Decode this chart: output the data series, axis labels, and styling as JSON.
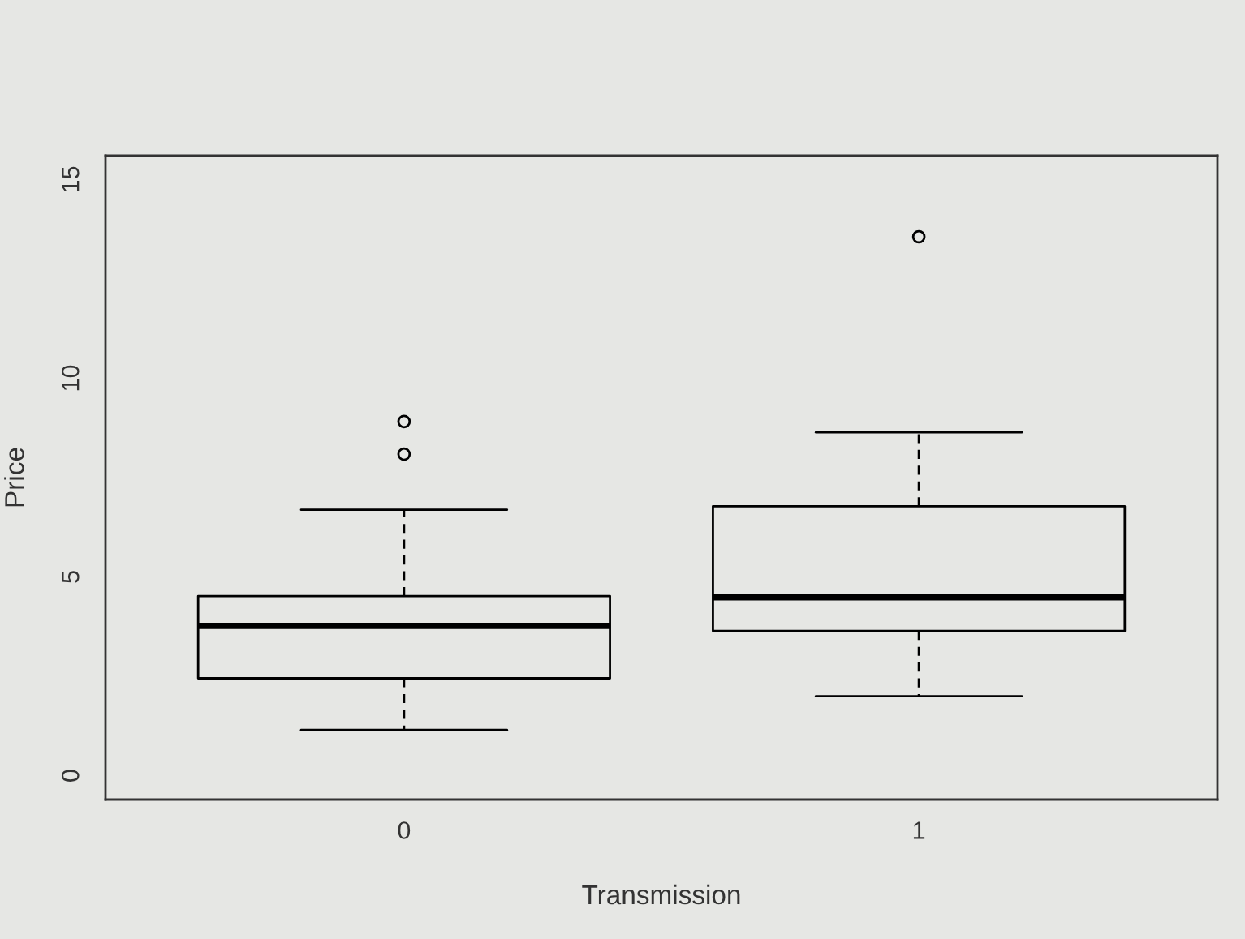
{
  "chart_data": {
    "type": "box",
    "xlabel": "Transmission",
    "ylabel": "Price",
    "categories": [
      "0",
      "1"
    ],
    "boxes": [
      {
        "low": 1.15,
        "q1": 2.45,
        "median": 3.77,
        "q3": 4.52,
        "high": 6.69,
        "outliers": [
          8.09,
          8.91
        ]
      },
      {
        "low": 2.0,
        "q1": 3.64,
        "median": 4.49,
        "q3": 6.78,
        "high": 8.64,
        "outliers": [
          13.56
        ]
      }
    ],
    "color": "#000000",
    "ylim": [
      -0.6,
      15.6
    ],
    "yticks": [
      0,
      5,
      10,
      15
    ],
    "grid": false
  }
}
